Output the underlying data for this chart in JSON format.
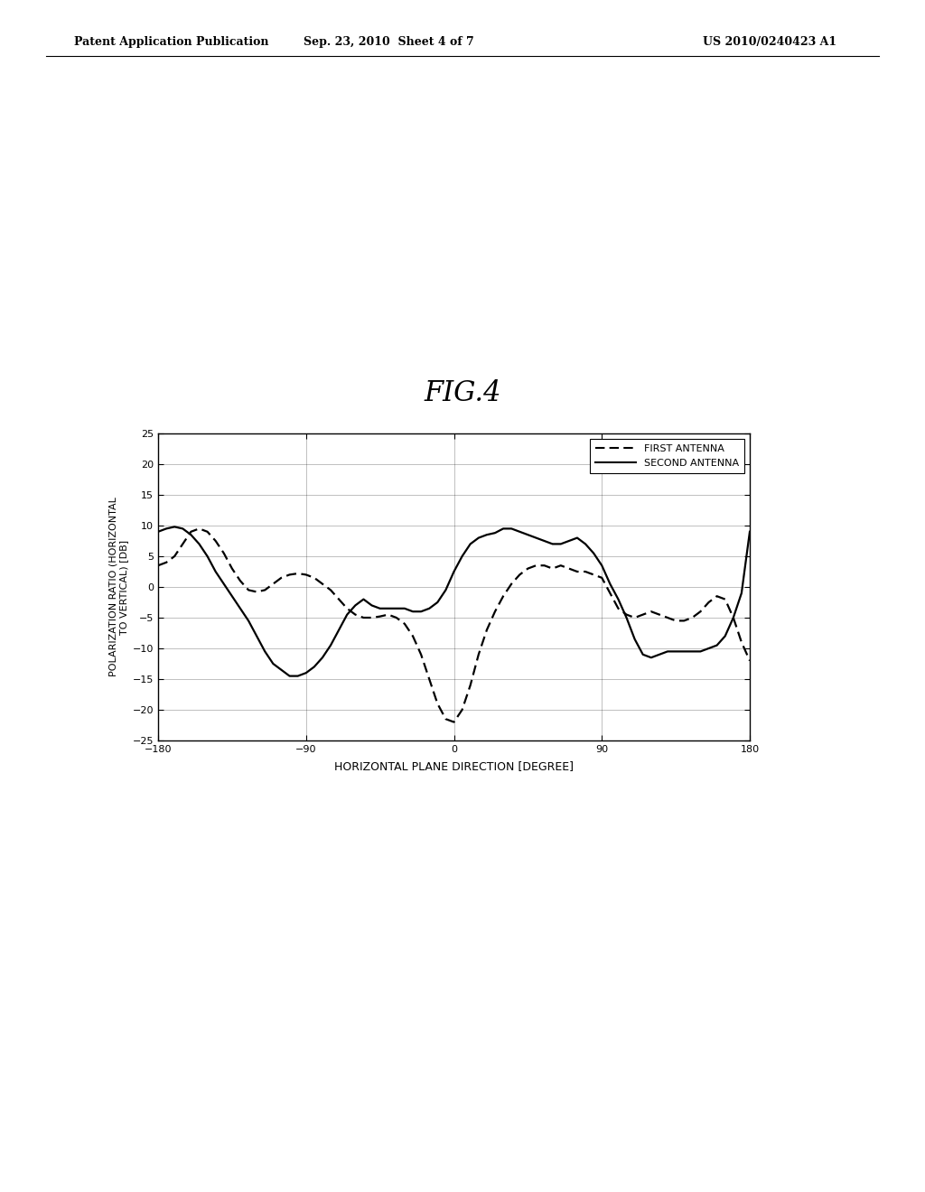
{
  "title": "FIG.4",
  "xlabel": "HORIZONTAL PLANE DIRECTION [DEGREE]",
  "ylabel": "POLARIZATION RATIO (HORIZONTAL\nTO VERTICAL) [DB]",
  "xlim": [
    -180,
    180
  ],
  "ylim": [
    -25,
    25
  ],
  "xticks": [
    -180,
    -90,
    0,
    90,
    180
  ],
  "yticks": [
    -25,
    -20,
    -15,
    -10,
    -5,
    0,
    5,
    10,
    15,
    20,
    25
  ],
  "header_left": "Patent Application Publication",
  "header_center": "Sep. 23, 2010  Sheet 4 of 7",
  "header_right": "US 2010/0240423 A1",
  "first_antenna_x": [
    -180,
    -175,
    -170,
    -165,
    -160,
    -155,
    -150,
    -145,
    -140,
    -135,
    -130,
    -125,
    -120,
    -115,
    -110,
    -105,
    -100,
    -95,
    -90,
    -85,
    -80,
    -75,
    -70,
    -65,
    -60,
    -55,
    -50,
    -45,
    -40,
    -35,
    -30,
    -25,
    -20,
    -15,
    -10,
    -5,
    0,
    5,
    10,
    15,
    20,
    25,
    30,
    35,
    40,
    45,
    50,
    55,
    60,
    65,
    70,
    75,
    80,
    85,
    90,
    95,
    100,
    105,
    110,
    115,
    120,
    125,
    130,
    135,
    140,
    145,
    150,
    155,
    160,
    165,
    170,
    175,
    180
  ],
  "first_antenna_y": [
    3.5,
    4.0,
    5.0,
    7.0,
    9.0,
    9.5,
    9.0,
    7.5,
    5.5,
    3.0,
    1.0,
    -0.5,
    -0.8,
    -0.5,
    0.5,
    1.5,
    2.0,
    2.2,
    2.0,
    1.5,
    0.5,
    -0.5,
    -2.0,
    -3.5,
    -4.5,
    -5.0,
    -5.0,
    -4.8,
    -4.5,
    -5.0,
    -6.0,
    -8.0,
    -11.0,
    -15.0,
    -19.0,
    -21.5,
    -22.0,
    -20.0,
    -16.0,
    -11.0,
    -7.0,
    -4.0,
    -1.5,
    0.5,
    2.0,
    3.0,
    3.5,
    3.5,
    3.0,
    3.5,
    3.0,
    2.5,
    2.5,
    2.0,
    1.5,
    -1.0,
    -3.5,
    -4.5,
    -5.0,
    -4.5,
    -4.0,
    -4.5,
    -5.0,
    -5.5,
    -5.5,
    -5.0,
    -4.0,
    -2.5,
    -1.5,
    -2.0,
    -5.0,
    -9.0,
    -12.0
  ],
  "second_antenna_x": [
    -180,
    -175,
    -170,
    -165,
    -160,
    -155,
    -150,
    -145,
    -140,
    -135,
    -130,
    -125,
    -120,
    -115,
    -110,
    -105,
    -100,
    -95,
    -90,
    -85,
    -80,
    -75,
    -70,
    -65,
    -60,
    -55,
    -50,
    -45,
    -40,
    -35,
    -30,
    -25,
    -20,
    -15,
    -10,
    -5,
    0,
    5,
    10,
    15,
    20,
    25,
    30,
    35,
    40,
    45,
    50,
    55,
    60,
    65,
    70,
    75,
    80,
    85,
    90,
    95,
    100,
    105,
    110,
    115,
    120,
    125,
    130,
    135,
    140,
    145,
    150,
    155,
    160,
    165,
    170,
    175,
    180
  ],
  "second_antenna_y": [
    9.0,
    9.5,
    9.8,
    9.5,
    8.5,
    7.0,
    5.0,
    2.5,
    0.5,
    -1.5,
    -3.5,
    -5.5,
    -8.0,
    -10.5,
    -12.5,
    -13.5,
    -14.5,
    -14.5,
    -14.0,
    -13.0,
    -11.5,
    -9.5,
    -7.0,
    -4.5,
    -3.0,
    -2.0,
    -3.0,
    -3.5,
    -3.5,
    -3.5,
    -3.5,
    -4.0,
    -4.0,
    -3.5,
    -2.5,
    -0.5,
    2.5,
    5.0,
    7.0,
    8.0,
    8.5,
    8.8,
    9.5,
    9.5,
    9.0,
    8.5,
    8.0,
    7.5,
    7.0,
    7.0,
    7.5,
    8.0,
    7.0,
    5.5,
    3.5,
    0.5,
    -2.0,
    -5.0,
    -8.5,
    -11.0,
    -11.5,
    -11.0,
    -10.5,
    -10.5,
    -10.5,
    -10.5,
    -10.5,
    -10.0,
    -9.5,
    -8.0,
    -5.0,
    -1.0,
    9.0
  ],
  "fig_width": 10.24,
  "fig_height": 13.2,
  "fig_dpi": 100
}
